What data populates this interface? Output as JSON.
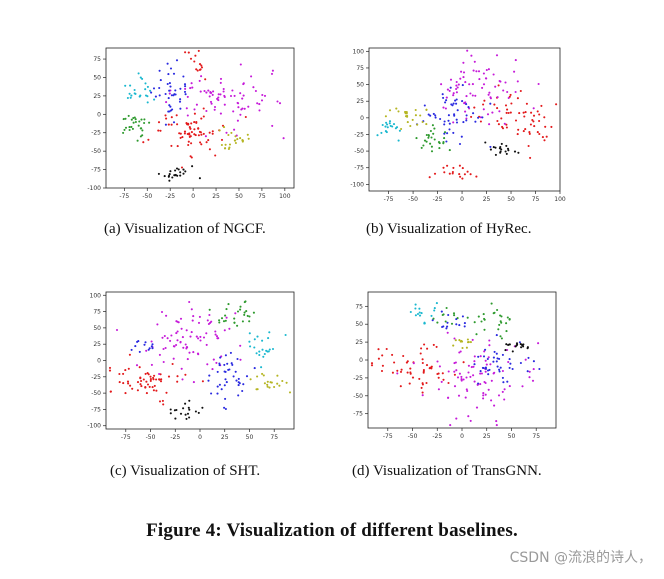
{
  "figure_caption": "Figure 4: Visualization of different baselines.",
  "watermark": "CSDN @流浪的诗人，",
  "cluster_colors": {
    "red": "#e31a1c",
    "magenta": "#c61ad9",
    "blue": "#2a2ae0",
    "green": "#2e9a2e",
    "cyan": "#1ab8cf",
    "olive": "#b5b522",
    "black": "#111111"
  },
  "chart_data": [
    {
      "type": "scatter",
      "caption": "(a)  Visualization of NGCF.",
      "xlim": [
        -95,
        110
      ],
      "ylim": [
        -100,
        90
      ],
      "xticks": [
        -75,
        -50,
        -25,
        0,
        25,
        50,
        75,
        100
      ],
      "yticks": [
        -100,
        -75,
        -50,
        -25,
        0,
        25,
        50,
        75
      ],
      "clusters": [
        {
          "color": "red",
          "cx": -10,
          "cy": -25,
          "sx": 22,
          "sy": 16,
          "n": 70
        },
        {
          "color": "red",
          "cx": 5,
          "cy": 70,
          "sx": 8,
          "sy": 10,
          "n": 14
        },
        {
          "color": "magenta",
          "cx": 30,
          "cy": 20,
          "sx": 28,
          "sy": 22,
          "n": 80
        },
        {
          "color": "blue",
          "cx": -25,
          "cy": 35,
          "sx": 12,
          "sy": 22,
          "n": 40
        },
        {
          "color": "green",
          "cx": -65,
          "cy": -15,
          "sx": 9,
          "sy": 9,
          "n": 28
        },
        {
          "color": "cyan",
          "cx": -55,
          "cy": 30,
          "sx": 9,
          "sy": 12,
          "n": 22
        },
        {
          "color": "olive",
          "cx": 45,
          "cy": -33,
          "sx": 9,
          "sy": 7,
          "n": 22
        },
        {
          "color": "black",
          "cx": -15,
          "cy": -82,
          "sx": 12,
          "sy": 6,
          "n": 22
        }
      ]
    },
    {
      "type": "scatter",
      "caption": "(b)  Visualization of HyRec.",
      "xlim": [
        -95,
        100
      ],
      "ylim": [
        -110,
        105
      ],
      "xticks": [
        -75,
        -50,
        -25,
        0,
        25,
        50,
        75,
        100
      ],
      "yticks": [
        -100,
        -75,
        -50,
        -25,
        0,
        25,
        50,
        75,
        100
      ],
      "clusters": [
        {
          "color": "red",
          "cx": 55,
          "cy": -5,
          "sx": 20,
          "sy": 20,
          "n": 60
        },
        {
          "color": "red",
          "cx": -5,
          "cy": -80,
          "sx": 12,
          "sy": 6,
          "n": 18
        },
        {
          "color": "magenta",
          "cx": 15,
          "cy": 45,
          "sx": 22,
          "sy": 28,
          "n": 75
        },
        {
          "color": "blue",
          "cx": -10,
          "cy": 5,
          "sx": 16,
          "sy": 22,
          "n": 50
        },
        {
          "color": "green",
          "cx": -30,
          "cy": -35,
          "sx": 9,
          "sy": 9,
          "n": 26
        },
        {
          "color": "cyan",
          "cx": -75,
          "cy": -15,
          "sx": 8,
          "sy": 8,
          "n": 18
        },
        {
          "color": "olive",
          "cx": -55,
          "cy": 5,
          "sx": 11,
          "sy": 10,
          "n": 24
        },
        {
          "color": "black",
          "cx": 38,
          "cy": -50,
          "sx": 10,
          "sy": 5,
          "n": 18
        }
      ]
    },
    {
      "type": "scatter",
      "caption": "(c)  Visualization of SHT.",
      "xlim": [
        -95,
        95
      ],
      "ylim": [
        -105,
        105
      ],
      "xticks": [
        -75,
        -50,
        -25,
        0,
        25,
        50,
        75
      ],
      "yticks": [
        -100,
        -75,
        -50,
        -25,
        0,
        25,
        50,
        75,
        100
      ],
      "clusters": [
        {
          "color": "red",
          "cx": -55,
          "cy": -35,
          "sx": 20,
          "sy": 15,
          "n": 60
        },
        {
          "color": "magenta",
          "cx": -10,
          "cy": 30,
          "sx": 26,
          "sy": 30,
          "n": 85
        },
        {
          "color": "blue",
          "cx": 30,
          "cy": -25,
          "sx": 12,
          "sy": 20,
          "n": 40
        },
        {
          "color": "blue",
          "cx": -55,
          "cy": 20,
          "sx": 10,
          "sy": 5,
          "n": 12
        },
        {
          "color": "green",
          "cx": 35,
          "cy": 70,
          "sx": 12,
          "sy": 10,
          "n": 26
        },
        {
          "color": "cyan",
          "cx": 60,
          "cy": 20,
          "sx": 12,
          "sy": 14,
          "n": 22
        },
        {
          "color": "olive",
          "cx": 65,
          "cy": -35,
          "sx": 10,
          "sy": 9,
          "n": 20
        },
        {
          "color": "black",
          "cx": -15,
          "cy": -75,
          "sx": 7,
          "sy": 8,
          "n": 18
        }
      ]
    },
    {
      "type": "scatter",
      "caption": "(d)  Visualization of TransGNN.",
      "xlim": [
        -95,
        95
      ],
      "ylim": [
        -95,
        95
      ],
      "xticks": [
        -75,
        -50,
        -25,
        0,
        25,
        50,
        75
      ],
      "yticks": [
        -75,
        -50,
        -25,
        0,
        25,
        50,
        75
      ],
      "clusters": [
        {
          "color": "red",
          "cx": -50,
          "cy": -10,
          "sx": 22,
          "sy": 16,
          "n": 55
        },
        {
          "color": "magenta",
          "cx": 15,
          "cy": -20,
          "sx": 25,
          "sy": 30,
          "n": 90
        },
        {
          "color": "blue",
          "cx": 40,
          "cy": -5,
          "sx": 16,
          "sy": 14,
          "n": 40
        },
        {
          "color": "blue",
          "cx": -10,
          "cy": 50,
          "sx": 10,
          "sy": 10,
          "n": 14
        },
        {
          "color": "green",
          "cx": 35,
          "cy": 55,
          "sx": 12,
          "sy": 10,
          "n": 26
        },
        {
          "color": "green",
          "cx": -20,
          "cy": 60,
          "sx": 8,
          "sy": 6,
          "n": 10
        },
        {
          "color": "cyan",
          "cx": -40,
          "cy": 65,
          "sx": 7,
          "sy": 8,
          "n": 16
        },
        {
          "color": "olive",
          "cx": 0,
          "cy": 25,
          "sx": 7,
          "sy": 5,
          "n": 12
        },
        {
          "color": "black",
          "cx": 55,
          "cy": 20,
          "sx": 8,
          "sy": 5,
          "n": 18
        }
      ]
    }
  ]
}
